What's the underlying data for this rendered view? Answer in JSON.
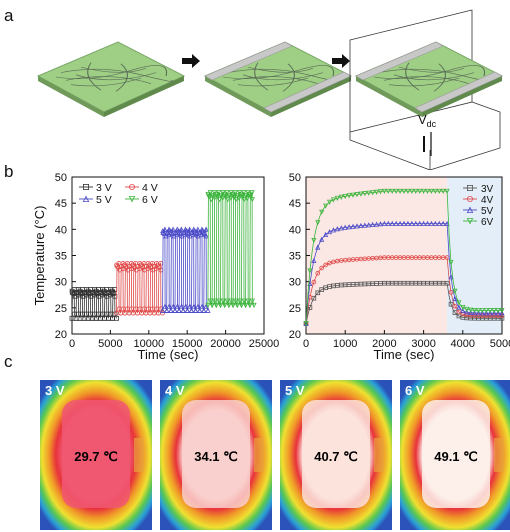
{
  "panel_labels": {
    "a": "a",
    "b": "b",
    "c": "c"
  },
  "panel_a": {
    "voltage_base": "V",
    "voltage_sub": "dc"
  },
  "chart_data": [
    {
      "type": "scatter",
      "title": "",
      "xlabel": "Time (sec)",
      "ylabel": "Temperature (°C)",
      "xlim": [
        0,
        25000
      ],
      "ylim": [
        20,
        50
      ],
      "xticks": [
        0,
        5000,
        10000,
        15000,
        20000,
        25000
      ],
      "yticks": [
        20,
        25,
        30,
        35,
        40,
        45,
        50
      ],
      "legend": "top-left, two columns",
      "series": [
        {
          "name": "3 V",
          "color": "#333333",
          "marker": "square",
          "x_range": [
            0,
            5800
          ],
          "low": 23,
          "high": 28.5
        },
        {
          "name": "4 V",
          "color": "#e04848",
          "marker": "circle",
          "x_range": [
            5800,
            11800
          ],
          "low": 24,
          "high": 33.5
        },
        {
          "name": "5 V",
          "color": "#4a4ac8",
          "marker": "triangle-up",
          "x_range": [
            11800,
            17700
          ],
          "low": 24.5,
          "high": 40
        },
        {
          "name": "6 V",
          "color": "#3cb43c",
          "marker": "triangle-down",
          "x_range": [
            17700,
            23700
          ],
          "low": 25.5,
          "high": 47
        }
      ]
    },
    {
      "type": "scatter",
      "title": "",
      "xlabel": "Time (sec)",
      "ylabel": "",
      "xlim": [
        0,
        5000
      ],
      "ylim": [
        20,
        50
      ],
      "xticks": [
        0,
        1000,
        2000,
        3000,
        4000,
        5000
      ],
      "yticks": [
        20,
        25,
        30,
        35,
        40,
        45,
        50
      ],
      "legend": "right",
      "shaded_regions": [
        {
          "x": [
            0,
            3600
          ],
          "color": "#fbe7e3"
        },
        {
          "x": [
            3600,
            5000
          ],
          "color": "#e4eef8"
        }
      ],
      "series": [
        {
          "name": "3V",
          "color": "#555555",
          "marker": "square",
          "plateau": 29.7,
          "final": 23
        },
        {
          "name": "4V",
          "color": "#e04848",
          "marker": "circle",
          "plateau": 34.6,
          "final": 23.5
        },
        {
          "name": "5V",
          "color": "#4a4ac8",
          "marker": "triangle-up",
          "plateau": 41.1,
          "final": 24
        },
        {
          "name": "6V",
          "color": "#3cb43c",
          "marker": "triangle-down",
          "plateau": 47.3,
          "final": 24.5
        }
      ]
    }
  ],
  "panel_c": [
    {
      "voltage": "3 V",
      "temperature": "29.7 ℃",
      "core_color": "#f05872"
    },
    {
      "voltage": "4 V",
      "temperature": "34.1 ℃",
      "core_color": "#f9d0cc"
    },
    {
      "voltage": "5 V",
      "temperature": "40.7 ℃",
      "core_color": "#fbe3dc"
    },
    {
      "voltage": "6 V",
      "temperature": "49.1 ℃",
      "core_color": "#fdf0ea"
    }
  ]
}
